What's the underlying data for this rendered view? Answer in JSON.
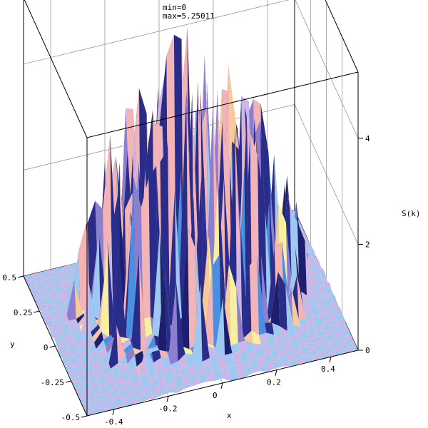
{
  "header": {
    "min_text": "min=0",
    "max_text": "max=5.25011"
  },
  "chart_data": {
    "type": "surface3d",
    "title": "",
    "xlabel": "x",
    "ylabel": "y",
    "zlabel": "S(k)",
    "xlim": [
      -0.5,
      0.5
    ],
    "ylim": [
      -0.5,
      0.5
    ],
    "zlim": [
      0,
      5.25011
    ],
    "x_ticks": [
      "-0.4",
      "-0.2",
      "0",
      "0.2",
      "0.4"
    ],
    "x_tick_values": [
      -0.4,
      -0.2,
      0,
      0.2,
      0.4
    ],
    "y_ticks": [
      "0.5",
      "0.25",
      "0",
      "-0.25",
      "-0.5"
    ],
    "y_tick_values": [
      0.5,
      0.25,
      0,
      -0.25,
      -0.5
    ],
    "z_ticks": [
      "0",
      "2",
      "4"
    ],
    "z_tick_values": [
      0,
      2,
      4
    ],
    "min": 0,
    "max": 5.25011,
    "grid": true,
    "colors": {
      "deep": "#1c1f6e",
      "navy": "#2a2c8a",
      "violet": "#8c7fd0",
      "lavender": "#c9b7e8",
      "pink": "#f2b4b6",
      "peach": "#f8c99a",
      "light_blue": "#9ec8f0",
      "cyan_blue": "#4a8fe0",
      "yellow": "#f6f0a0"
    }
  }
}
